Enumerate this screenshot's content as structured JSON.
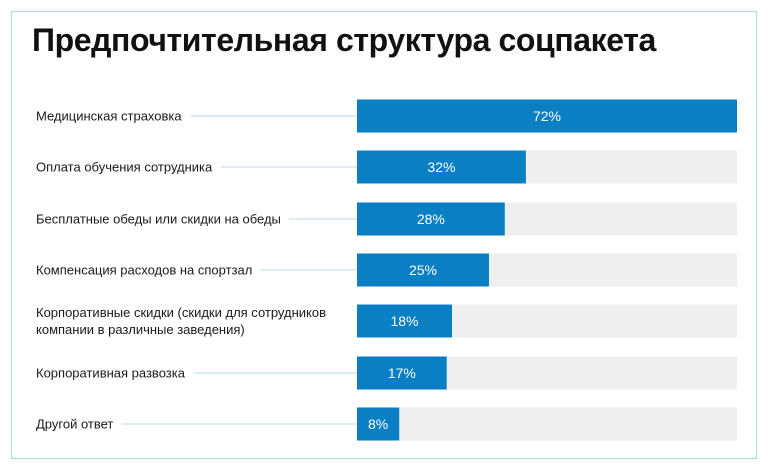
{
  "chart_data": {
    "type": "bar",
    "orientation": "horizontal",
    "title": "Предпочтительная структура соцпакета",
    "xlabel": "",
    "ylabel": "",
    "xlim": [
      0,
      72
    ],
    "grid": false,
    "legend": "none",
    "categories": [
      [
        "Медицинская страховка"
      ],
      [
        "Оплата обучения сотрудника"
      ],
      [
        "Бесплатные обеды или скидки на обеды"
      ],
      [
        "Компенсация расходов на спортзал"
      ],
      [
        "Корпоративные скидки (скидки для сотрудников",
        "компании в различные заведения)"
      ],
      [
        "Корпоративная развозка"
      ],
      [
        "Другой ответ"
      ]
    ],
    "values": [
      72,
      32,
      28,
      25,
      18,
      17,
      8
    ],
    "value_labels": [
      "72%",
      "32%",
      "28%",
      "25%",
      "18%",
      "17%",
      "8%"
    ],
    "colors": {
      "bar": "#0a7fc4",
      "track": "#efefef",
      "leader": "#b8dce8",
      "label": "#1a1a1a",
      "value_text": "#ffffff"
    }
  }
}
